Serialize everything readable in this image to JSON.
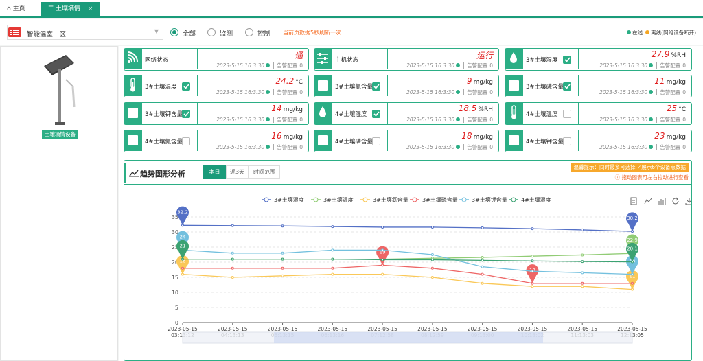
{
  "tabs": {
    "home": "主页",
    "current": "土壤墒情",
    "close": "×"
  },
  "toolbar": {
    "area": "智能温室二区",
    "filters": [
      "全部",
      "监测",
      "控制"
    ],
    "selected_filter": 0,
    "refresh_note": "当前页数据5秒刷新一次",
    "status_legend": [
      {
        "label": "在线",
        "color": "#2bae85"
      },
      {
        "label": "离线(网络设备断开)",
        "color": "#f5a623"
      }
    ]
  },
  "device": {
    "label": "土壤墒情设备"
  },
  "alarm_label": "告警配置",
  "cards": [
    {
      "label": "网络状态",
      "icon": "wifi",
      "value": "通",
      "time": "2023-5-15 16:3:30",
      "alarm": 0
    },
    {
      "label": "主机状态",
      "icon": "sliders",
      "value": "运行",
      "time": "2023-5-15 16:3:30",
      "alarm": 0
    },
    {
      "label": "3#土壤湿度",
      "icon": "drop",
      "checked": true,
      "value": 27.9,
      "unit": "%RH",
      "time": "2023-5-15 16:3:30",
      "alarm": 0
    },
    {
      "label": "3#土壤温度",
      "icon": "thermo",
      "checked": true,
      "value": 24.2,
      "unit": "°C",
      "time": "2023-5-15 16:3:30",
      "alarm": 0
    },
    {
      "label": "3#土壤氮含量",
      "icon": "box",
      "checked": true,
      "value": 9,
      "unit": "mg/kg",
      "time": "2023-5-15 16:3:30",
      "alarm": 0
    },
    {
      "label": "3#土壤磷含量",
      "icon": "box",
      "checked": true,
      "value": 11,
      "unit": "mg/kg",
      "time": "2023-5-15 16:3:30",
      "alarm": 0
    },
    {
      "label": "3#土壤钾含量",
      "icon": "box",
      "checked": true,
      "value": 14,
      "unit": "mg/kg",
      "time": "2023-5-15 16:3:30",
      "alarm": 0
    },
    {
      "label": "4#土壤湿度",
      "icon": "drop",
      "checked": true,
      "value": 18.5,
      "unit": "%RH",
      "time": "2023-5-15 16:3:30",
      "alarm": 0
    },
    {
      "label": "4#土壤温度",
      "icon": "thermo",
      "checked": false,
      "value": 25,
      "unit": "°C",
      "time": "2023-5-15 16:3:30",
      "alarm": 0
    },
    {
      "label": "4#土壤氮含量",
      "icon": "box",
      "checked": false,
      "value": 16,
      "unit": "mg/kg",
      "time": "2023-5-15 16:3:30",
      "alarm": 0
    },
    {
      "label": "4#土壤磷含量",
      "icon": "box",
      "checked": false,
      "value": 18,
      "unit": "mg/kg",
      "time": "2023-5-15 16:3:30",
      "alarm": 0
    },
    {
      "label": "4#土壤钾含量",
      "icon": "box",
      "checked": false,
      "value": 23,
      "unit": "mg/kg",
      "time": "2023-5-15 16:3:30",
      "alarm": 0
    }
  ],
  "trend": {
    "title": "趋势图形分析",
    "ranges": [
      "本日",
      "近3天",
      "时间范围"
    ],
    "selected_range": 0,
    "tip_a": "温馨提示：同时最多可选择",
    "tip_b": "展示6个设备点数据",
    "drag_tip": "拖动图表可左右拉动进行查看"
  },
  "chart_data": {
    "type": "line",
    "categories": [
      [
        "2023-05-15",
        "03:13:12"
      ],
      [
        "2023-05-15",
        "04:13:13"
      ],
      [
        "2023-05-15",
        "05:13:15"
      ],
      [
        "2023-05-15",
        "06:13:16"
      ],
      [
        "2023-05-15",
        "07:12:58"
      ],
      [
        "2023-05-15",
        "08:12:59"
      ],
      [
        "2023-05-15",
        "09:13:00"
      ],
      [
        "2023-05-15",
        "10:13:02"
      ],
      [
        "2023-05-15",
        "11:13:03"
      ],
      [
        "2023-05-15",
        "12:13:05"
      ]
    ],
    "ylim": [
      0,
      35
    ],
    "yticks": [
      0,
      5,
      10,
      15,
      20,
      25,
      30,
      35
    ],
    "grid": true,
    "series": [
      {
        "name": "3#土壤湿度",
        "color": "#5470c6",
        "values": [
          32.2,
          32.1,
          32,
          31.8,
          31.6,
          31.6,
          31.4,
          31.1,
          30.7,
          30.2
        ]
      },
      {
        "name": "3#土壤温度",
        "color": "#91cc75",
        "values": [
          21,
          21,
          21,
          21,
          21,
          21.3,
          21.6,
          22,
          22.4,
          22.9
        ]
      },
      {
        "name": "3#土壤氮含量",
        "color": "#fac858",
        "values": [
          16,
          15,
          15.5,
          16,
          16,
          15,
          13,
          12,
          12,
          11
        ]
      },
      {
        "name": "3#土壤磷含量",
        "color": "#ee6666",
        "values": [
          18,
          18,
          18,
          18,
          19,
          18,
          16,
          13,
          13,
          13
        ]
      },
      {
        "name": "3#土壤钾含量",
        "color": "#73c0de",
        "values": [
          24,
          23,
          23,
          24,
          24,
          22.5,
          18.5,
          17,
          16.5,
          16
        ]
      },
      {
        "name": "4#土壤湿度",
        "color": "#3ba272",
        "values": [
          21,
          21,
          21,
          21,
          20.8,
          20.8,
          20.6,
          20.4,
          20.2,
          20.1
        ]
      }
    ]
  }
}
